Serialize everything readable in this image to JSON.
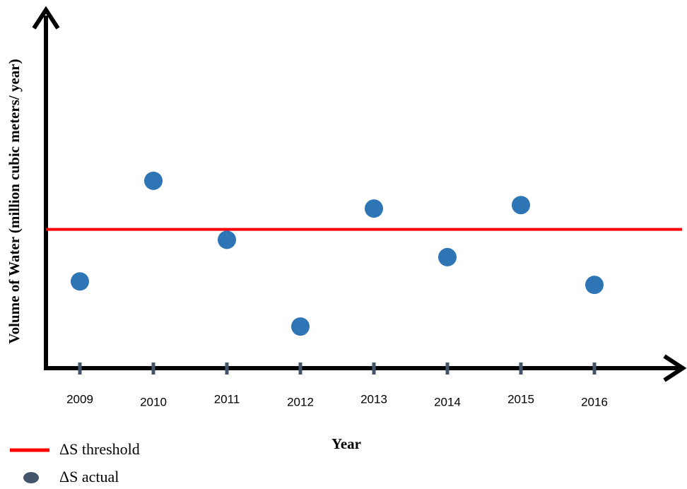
{
  "chart_data": {
    "type": "scatter",
    "x_label": "Year",
    "y_label": "Volume of Water (million cubic meters/ year)",
    "categories": [
      "2009",
      "2010",
      "2011",
      "2012",
      "2013",
      "2014",
      "2015",
      "2016"
    ],
    "series": [
      {
        "name": "ΔS actual",
        "color": "#2e75b6",
        "values": [
          25,
          54,
          37,
          12,
          46,
          32,
          47,
          24
        ]
      }
    ],
    "threshold": {
      "name": "ΔS threshold",
      "color": "#ff0000",
      "value": 40
    },
    "ylim": [
      0,
      100
    ]
  }
}
